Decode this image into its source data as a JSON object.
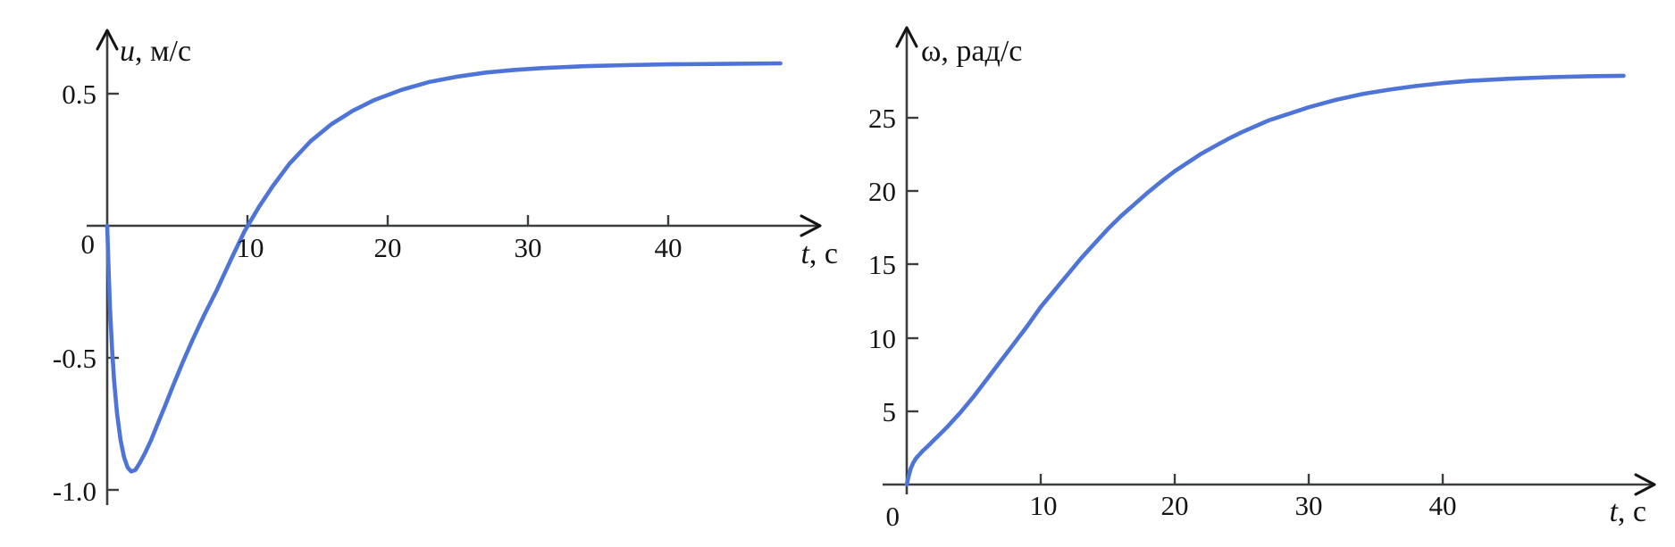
{
  "figure": {
    "background": "#ffffff",
    "curve_color": "#4f74d8",
    "axis_color": "#3a3f3e",
    "text_color": "#141414"
  },
  "chart_data": [
    {
      "type": "line",
      "title": "",
      "ylabel_var": "u",
      "ylabel_units": ", м/с",
      "xlabel_var": "t",
      "xlabel_units": ", с",
      "origin_label": "0",
      "xlabel": "t, с",
      "ylabel": "u, м/с",
      "xlim": [
        0,
        52
      ],
      "ylim": [
        -1.05,
        0.75
      ],
      "grid": false,
      "legend": "none",
      "x_ticks": [
        10,
        20,
        30,
        40
      ],
      "x_tick_labels": [
        "10",
        "20",
        "30",
        "40"
      ],
      "y_ticks": [
        0.5,
        -0.5,
        -1.0
      ],
      "y_tick_labels": [
        "0.5",
        "-0.5",
        "-1.0"
      ],
      "series": [
        {
          "name": "u(t)",
          "x": [
            0,
            0.1,
            0.2,
            0.35,
            0.5,
            0.7,
            0.95,
            1.2,
            1.45,
            1.7,
            2,
            2.3,
            2.7,
            3.1,
            3.6,
            4.1,
            4.7,
            5.4,
            6.1,
            6.9,
            7.8,
            8.8,
            9.8,
            10.8,
            11.8,
            13,
            14.5,
            16,
            17.5,
            19,
            21,
            23,
            25,
            27,
            29,
            31,
            34,
            37,
            40,
            44,
            48
          ],
          "y": [
            0,
            -0.17,
            -0.31,
            -0.47,
            -0.59,
            -0.71,
            -0.81,
            -0.875,
            -0.915,
            -0.93,
            -0.925,
            -0.9,
            -0.86,
            -0.815,
            -0.75,
            -0.685,
            -0.605,
            -0.515,
            -0.43,
            -0.34,
            -0.245,
            -0.13,
            -0.02,
            0.07,
            0.15,
            0.235,
            0.32,
            0.385,
            0.435,
            0.475,
            0.515,
            0.545,
            0.565,
            0.58,
            0.59,
            0.597,
            0.604,
            0.608,
            0.611,
            0.613,
            0.615
          ]
        }
      ],
      "annotations": {
        "min_value": -0.93,
        "min_at_t": 1.7,
        "zero_crossing_t": 9.8,
        "steady_state": 0.62
      }
    },
    {
      "type": "line",
      "title": "",
      "ylabel_var": "ω",
      "ylabel_units": ", рад/с",
      "xlabel_var": "t",
      "xlabel_units": ", с",
      "origin_label": "0",
      "xlabel": "t, с",
      "ylabel": "ω, рад/с",
      "xlim": [
        0,
        55
      ],
      "ylim": [
        0,
        31
      ],
      "grid": false,
      "legend": "none",
      "x_ticks": [
        10,
        20,
        30,
        40
      ],
      "x_tick_labels": [
        "10",
        "20",
        "30",
        "40"
      ],
      "y_ticks": [
        25,
        20,
        15,
        10,
        5
      ],
      "y_tick_labels": [
        "25",
        "20",
        "15",
        "10",
        "5"
      ],
      "series": [
        {
          "name": "ω(t)",
          "x": [
            0,
            0.15,
            0.3,
            0.5,
            0.7,
            0.95,
            1.2,
            1.5,
            2,
            2.5,
            3,
            3.5,
            4,
            4.5,
            5,
            5.5,
            6,
            6.5,
            7,
            7.5,
            8,
            9,
            10,
            11,
            12,
            13,
            14,
            15,
            16,
            17,
            18,
            19,
            20,
            21,
            22,
            23,
            24,
            25,
            26,
            27,
            28,
            29,
            30,
            32,
            34,
            36,
            38,
            40,
            42,
            45,
            48,
            51,
            53.5
          ],
          "y": [
            0,
            0.6,
            1.1,
            1.5,
            1.8,
            2.05,
            2.3,
            2.55,
            3.0,
            3.45,
            3.9,
            4.4,
            4.9,
            5.45,
            6.0,
            6.6,
            7.2,
            7.8,
            8.4,
            9.0,
            9.6,
            10.8,
            12.1,
            13.2,
            14.3,
            15.4,
            16.4,
            17.4,
            18.3,
            19.1,
            19.9,
            20.65,
            21.35,
            21.95,
            22.55,
            23.05,
            23.55,
            24.0,
            24.4,
            24.8,
            25.1,
            25.4,
            25.7,
            26.2,
            26.6,
            26.9,
            27.15,
            27.35,
            27.5,
            27.65,
            27.75,
            27.82,
            27.85
          ]
        }
      ],
      "annotations": {
        "steady_state": 28,
        "inflection_low_t": 1.0
      }
    }
  ]
}
